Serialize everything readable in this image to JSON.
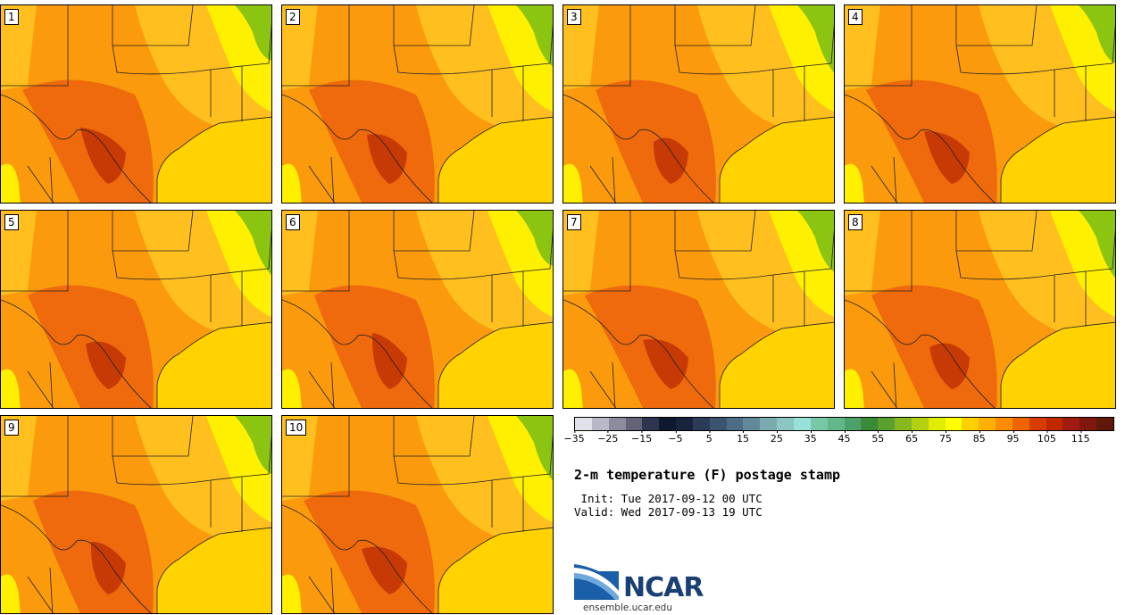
{
  "title": "2-m temperature (F) postage stamp",
  "init": " Init: Tue 2017-09-12 00 UTC",
  "valid": "Valid: Wed 2017-09-13 19 UTC",
  "logo": {
    "text": "NCAR",
    "site": "ensemble.ucar.edu"
  },
  "members": [
    "1",
    "2",
    "3",
    "4",
    "5",
    "6",
    "7",
    "8",
    "9",
    "10"
  ],
  "colorbar": {
    "ticks": [
      "−35",
      "−25",
      "−15",
      "−5",
      "5",
      "15",
      "25",
      "35",
      "45",
      "55",
      "65",
      "75",
      "85",
      "95",
      "105",
      "115"
    ],
    "colors": [
      "#e0e0e8",
      "#b8b8c8",
      "#8c8ca0",
      "#646478",
      "#2e3550",
      "#10182e",
      "#18243e",
      "#2a3c58",
      "#3c5470",
      "#4e6c86",
      "#62889a",
      "#7aaab0",
      "#8cc6c4",
      "#98e0d8",
      "#78c8a8",
      "#62b888",
      "#4ea06a",
      "#3a8a38",
      "#5aa02e",
      "#88b820",
      "#b4d010",
      "#e0ec00",
      "#ffff00",
      "#ffd000",
      "#ffb000",
      "#ff8c00",
      "#f06400",
      "#d83c00",
      "#c02800",
      "#a01c10",
      "#801810",
      "#601808"
    ],
    "unit": "F"
  },
  "map_colors": {
    "gulf": "#ffd200",
    "land_base": "#fb9a0d",
    "hot": "#ee6a0c",
    "hottest": "#c83a05",
    "warm": "#ffbf1e",
    "mild": "#ffef00",
    "cool": "#8cc412",
    "border": "#222222"
  }
}
